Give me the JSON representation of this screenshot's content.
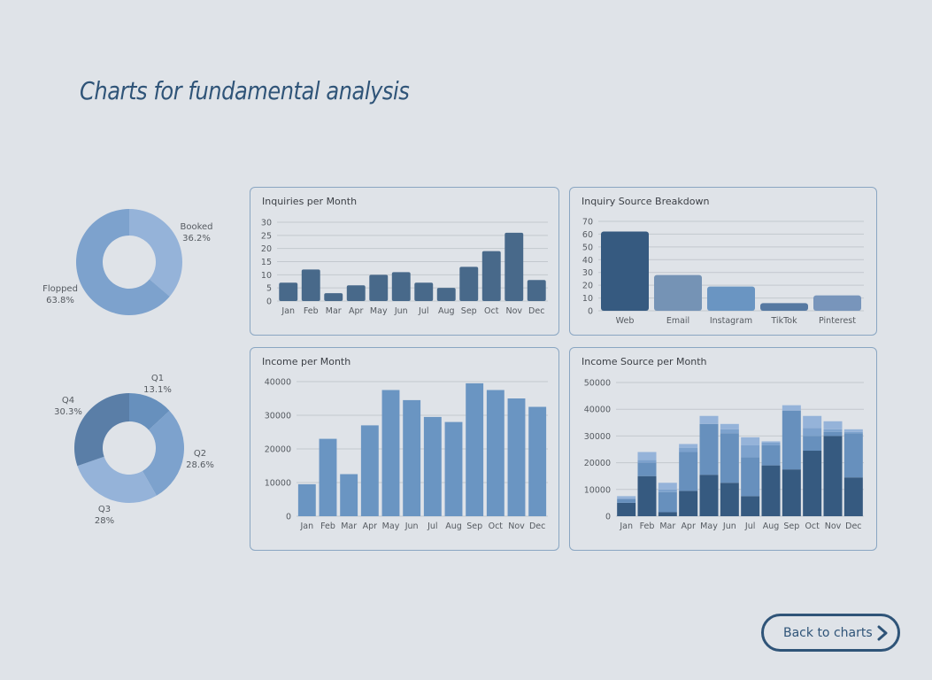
{
  "page": {
    "title": "Charts for fundamental analysis",
    "back_button": "Back to charts"
  },
  "colors": {
    "dark": "#48698a",
    "darker": "#365a80",
    "mid": "#6a95c2",
    "light": "#8eaed6",
    "lighter": "#9cbbe0",
    "grid": "#c3c8ce",
    "axis_text": "#555a60",
    "label_text": "#555a60"
  },
  "chart_data": [
    {
      "id": "booked-donut",
      "type": "pie",
      "labels": [
        "Booked",
        "Flopped"
      ],
      "values": [
        36.2,
        63.8
      ],
      "value_labels": [
        "36.2%",
        "63.8%"
      ],
      "colors": [
        "#95b3d9",
        "#7da2cd"
      ]
    },
    {
      "id": "quarter-donut",
      "type": "pie",
      "labels": [
        "Q1",
        "Q2",
        "Q3",
        "Q4"
      ],
      "values": [
        13.1,
        28.6,
        28,
        30.3
      ],
      "value_labels": [
        "13.1%",
        "28.6%",
        "28%",
        "30.3%"
      ],
      "colors": [
        "#6790bd",
        "#7da2cd",
        "#95b3d9",
        "#5a7ea7"
      ]
    },
    {
      "id": "inquiries",
      "type": "bar",
      "title": "Inquiries per Month",
      "categories": [
        "Jan",
        "Feb",
        "Mar",
        "Apr",
        "May",
        "Jun",
        "Jul",
        "Aug",
        "Sep",
        "Oct",
        "Nov",
        "Dec"
      ],
      "values": [
        7,
        12,
        3,
        6,
        10,
        11,
        7,
        5,
        13,
        19,
        26,
        8
      ],
      "ylim": [
        0,
        30
      ],
      "yticks": [
        0,
        5,
        10,
        15,
        20,
        25,
        30
      ],
      "grid": true,
      "color": "#48698a"
    },
    {
      "id": "source-breakdown",
      "type": "bar",
      "title": "Inquiry Source Breakdown",
      "categories": [
        "Web",
        "Email",
        "Instagram",
        "TikTok",
        "Pinterest"
      ],
      "values": [
        62,
        28,
        19,
        6,
        12
      ],
      "ylim": [
        0,
        70
      ],
      "yticks": [
        0,
        10,
        20,
        30,
        40,
        50,
        60,
        70
      ],
      "grid": true,
      "colors": [
        "#365a80",
        "#7593b5",
        "#6a95c2",
        "#5679a2",
        "#7895bb"
      ]
    },
    {
      "id": "income",
      "type": "bar",
      "title": "Income per Month",
      "categories": [
        "Jan",
        "Feb",
        "Mar",
        "Apr",
        "May",
        "Jun",
        "Jul",
        "Aug",
        "Sep",
        "Oct",
        "Nov",
        "Dec"
      ],
      "values": [
        9500,
        23000,
        12500,
        27000,
        37500,
        34500,
        29500,
        28000,
        39500,
        37500,
        35000,
        32500
      ],
      "ylim": [
        0,
        40000
      ],
      "yticks": [
        0,
        10000,
        20000,
        30000,
        40000
      ],
      "grid": true,
      "color": "#6a95c2"
    },
    {
      "id": "income-source",
      "type": "bar",
      "stacked": true,
      "title": "Income Source per Month",
      "categories": [
        "Jan",
        "Feb",
        "Mar",
        "Apr",
        "May",
        "Jun",
        "Jul",
        "Aug",
        "Sep",
        "Oct",
        "Nov",
        "Dec"
      ],
      "ylim": [
        0,
        50000
      ],
      "yticks": [
        0,
        10000,
        20000,
        30000,
        40000,
        50000
      ],
      "grid": true,
      "series": [
        {
          "values": [
            5000,
            15000,
            1500,
            9500,
            15500,
            12500,
            7500,
            19000,
            17500,
            24500,
            30000,
            14500
          ],
          "color": "#365a80"
        },
        {
          "values": [
            1500,
            5000,
            7500,
            14500,
            19000,
            18500,
            14500,
            7500,
            22000,
            5500,
            1500,
            16500
          ],
          "color": "#6790bd"
        },
        {
          "values": [
            0,
            1000,
            1000,
            1500,
            0,
            1500,
            4500,
            1000,
            0,
            3000,
            1000,
            500
          ],
          "color": "#7da2cd"
        },
        {
          "values": [
            1000,
            3000,
            2500,
            1500,
            3000,
            2000,
            3000,
            500,
            2000,
            4500,
            3000,
            1000
          ],
          "color": "#95b3d9"
        }
      ]
    }
  ]
}
